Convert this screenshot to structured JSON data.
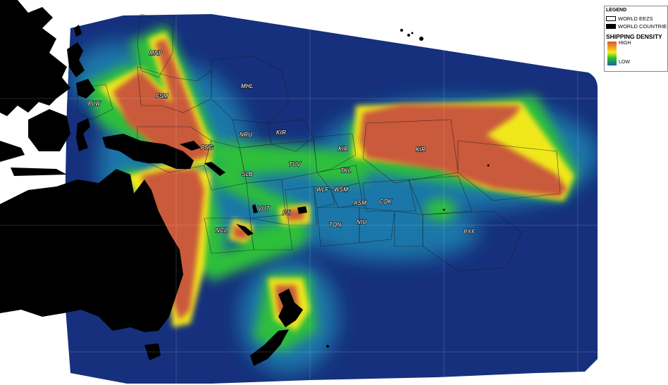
{
  "legend": {
    "title": "LEGEND",
    "items": [
      {
        "label": "WORLD EEZS",
        "swatch": "outline"
      },
      {
        "label": "WORLD COUNTRIES",
        "swatch": "black"
      }
    ],
    "density_title": "SHIPPING DENSITY",
    "high_label": "HIGH",
    "low_label": "LOW",
    "ramp_colors": [
      "#cf5b3d",
      "#f2a31c",
      "#f5ee1f",
      "#27c02e",
      "#1f5fa8"
    ]
  },
  "eez_labels": [
    "MNP",
    "FSM",
    "PLW",
    "MHL",
    "NRU",
    "KIR",
    "PNG",
    "KIR",
    "TUV",
    "SLB",
    "TKL",
    "KIR",
    "WLF",
    "WSM",
    "ASM",
    "COK",
    "VUT",
    "FJI",
    "NCL",
    "TON",
    "NIU",
    "PYF"
  ],
  "colors": {
    "ocean_low": "#16307d",
    "medium": "#1e8fb0",
    "green": "#2ec23a",
    "yellow": "#f1e81f",
    "high": "#c95a3a",
    "land": "#000000"
  }
}
